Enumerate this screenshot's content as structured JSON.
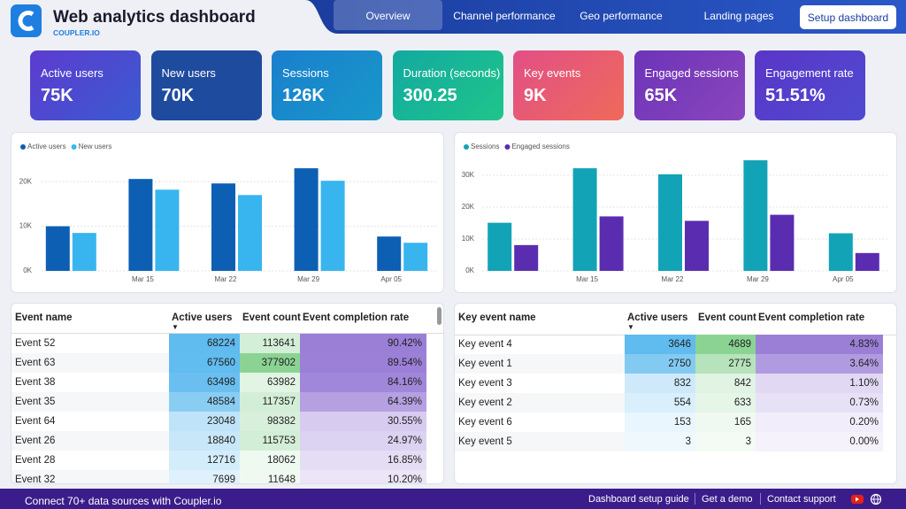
{
  "header": {
    "title": "Web analytics dashboard",
    "subtitle": "COUPLER.IO",
    "tabs": [
      "Overview",
      "Channel performance",
      "Geo performance",
      "Landing pages"
    ],
    "button": "Setup dashboard"
  },
  "kpis": [
    {
      "label": "Active users",
      "value": "75K"
    },
    {
      "label": "New users",
      "value": "70K"
    },
    {
      "label": "Sessions",
      "value": "126K"
    },
    {
      "label": "Duration (seconds)",
      "value": "300.25"
    },
    {
      "label": "Key events",
      "value": "9K"
    },
    {
      "label": "Engaged sessions",
      "value": "65K"
    },
    {
      "label": "Engagement rate",
      "value": "51.51%"
    }
  ],
  "chart_data": [
    {
      "type": "bar",
      "categories": [
        null,
        "Mar 15",
        "Mar 22",
        "Mar 29",
        "Apr 05"
      ],
      "series": [
        {
          "name": "Active users",
          "color": "#0d5fb3",
          "values": [
            10000,
            20600,
            19600,
            23000,
            7700
          ]
        },
        {
          "name": "New users",
          "color": "#38b5ef",
          "values": [
            8500,
            18200,
            17000,
            20200,
            6300
          ]
        }
      ],
      "ylim": [
        0,
        25000
      ],
      "yticks": [
        {
          "value": 0,
          "label": "0K"
        },
        {
          "value": 10000,
          "label": "10K"
        },
        {
          "value": 20000,
          "label": "20K"
        }
      ],
      "grid": true
    },
    {
      "type": "bar",
      "categories": [
        null,
        "Mar 15",
        "Mar 22",
        "Mar 29",
        "Apr 05"
      ],
      "series": [
        {
          "name": "Sessions",
          "color": "#12a3b7",
          "values": [
            15100,
            32200,
            30300,
            34700,
            11800
          ]
        },
        {
          "name": "Engaged sessions",
          "color": "#5a2db0",
          "values": [
            8100,
            17100,
            15700,
            17600,
            5600
          ]
        }
      ],
      "ylim": [
        0,
        35000
      ],
      "yticks": [
        {
          "value": 0,
          "label": "0K"
        },
        {
          "value": 10000,
          "label": "10K"
        },
        {
          "value": 20000,
          "label": "20K"
        },
        {
          "value": 30000,
          "label": "30K"
        }
      ],
      "grid": true
    }
  ],
  "tables": [
    {
      "columns": [
        "Event name",
        "Active users",
        "Event count",
        "Event completion rate"
      ],
      "rows": [
        [
          "Event 52",
          "68224",
          "113641",
          "90.42%"
        ],
        [
          "Event 63",
          "67560",
          "377902",
          "89.54%"
        ],
        [
          "Event 38",
          "63498",
          "63982",
          "84.16%"
        ],
        [
          "Event 35",
          "48584",
          "117357",
          "64.39%"
        ],
        [
          "Event 64",
          "23048",
          "98382",
          "30.55%"
        ],
        [
          "Event 26",
          "18840",
          "115753",
          "24.97%"
        ],
        [
          "Event 28",
          "12716",
          "18062",
          "16.85%"
        ],
        [
          "Event 32",
          "7699",
          "11648",
          "10.20%"
        ]
      ]
    },
    {
      "columns": [
        "Key event name",
        "Active users",
        "Event count",
        "Event completion rate"
      ],
      "rows": [
        [
          "Key event 4",
          "3646",
          "4689",
          "4.83%"
        ],
        [
          "Key event 1",
          "2750",
          "2775",
          "3.64%"
        ],
        [
          "Key event 3",
          "832",
          "842",
          "1.10%"
        ],
        [
          "Key event 2",
          "554",
          "633",
          "0.73%"
        ],
        [
          "Key event 6",
          "153",
          "165",
          "0.20%"
        ],
        [
          "Key event 5",
          "3",
          "3",
          "0.00%"
        ]
      ]
    }
  ],
  "footer": {
    "text": "Connect 70+ data sources with Coupler.io",
    "links": [
      "Dashboard setup guide",
      "Get a demo",
      "Contact support"
    ]
  }
}
